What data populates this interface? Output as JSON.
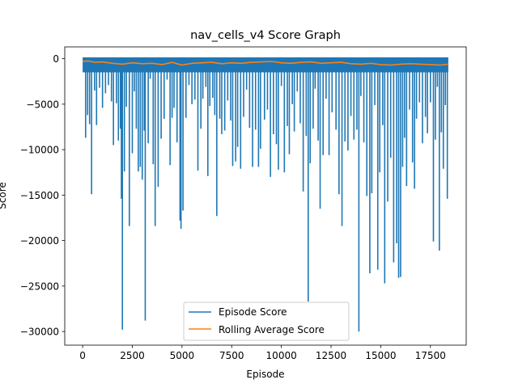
{
  "chart_data": {
    "type": "line",
    "title": "nav_cells_v4 Score Graph",
    "xlabel": "Episode",
    "ylabel": "Score",
    "xlim": [
      -900,
      19300
    ],
    "ylim": [
      -31500,
      1300
    ],
    "xticks": [
      0,
      2500,
      5000,
      7500,
      10000,
      12500,
      15000,
      17500
    ],
    "yticks": [
      0,
      -5000,
      -10000,
      -15000,
      -20000,
      -25000,
      -30000
    ],
    "grid": false,
    "legend_position": "lower center",
    "series": [
      {
        "name": "Episode Score",
        "color": "#1f77b4",
        "band": {
          "x_start": 0,
          "x_end": 18400,
          "upper": 150,
          "lower": -1500
        },
        "spikes": [
          [
            150,
            -8700
          ],
          [
            250,
            -6200
          ],
          [
            350,
            -7200
          ],
          [
            450,
            -14900
          ],
          [
            600,
            -3500
          ],
          [
            700,
            -7300
          ],
          [
            850,
            -3200
          ],
          [
            1000,
            -5400
          ],
          [
            1150,
            -3800
          ],
          [
            1300,
            -2900
          ],
          [
            1450,
            -4700
          ],
          [
            1550,
            -9500
          ],
          [
            1700,
            -4900
          ],
          [
            1800,
            -9000
          ],
          [
            1900,
            -7700
          ],
          [
            1950,
            -15400
          ],
          [
            2000,
            -29800
          ],
          [
            2100,
            -12400
          ],
          [
            2200,
            -5300
          ],
          [
            2350,
            -18400
          ],
          [
            2500,
            -10400
          ],
          [
            2600,
            -3600
          ],
          [
            2700,
            -7700
          ],
          [
            2800,
            -12400
          ],
          [
            2900,
            -11900
          ],
          [
            3000,
            -13300
          ],
          [
            3100,
            -7900
          ],
          [
            3150,
            -28800
          ],
          [
            3300,
            -9300
          ],
          [
            3400,
            -2200
          ],
          [
            3550,
            -11600
          ],
          [
            3650,
            -18400
          ],
          [
            3800,
            -14100
          ],
          [
            3950,
            -8800
          ],
          [
            4100,
            -6600
          ],
          [
            4250,
            -2300
          ],
          [
            4400,
            -11700
          ],
          [
            4500,
            -6500
          ],
          [
            4600,
            -5400
          ],
          [
            4750,
            -9200
          ],
          [
            4900,
            -17800
          ],
          [
            4950,
            -18700
          ],
          [
            5050,
            -16700
          ],
          [
            5200,
            -6500
          ],
          [
            5350,
            -2900
          ],
          [
            5500,
            -5000
          ],
          [
            5650,
            -4500
          ],
          [
            5800,
            -12300
          ],
          [
            5950,
            -7700
          ],
          [
            6050,
            -4400
          ],
          [
            6200,
            -3100
          ],
          [
            6300,
            -12900
          ],
          [
            6400,
            -5200
          ],
          [
            6550,
            -4300
          ],
          [
            6650,
            -6200
          ],
          [
            6750,
            -17300
          ],
          [
            6900,
            -6600
          ],
          [
            7000,
            -8300
          ],
          [
            7150,
            -7900
          ],
          [
            7300,
            -4600
          ],
          [
            7450,
            -6800
          ],
          [
            7550,
            -11800
          ],
          [
            7700,
            -11300
          ],
          [
            7800,
            -9700
          ],
          [
            7950,
            -12100
          ],
          [
            8100,
            -6400
          ],
          [
            8250,
            -3400
          ],
          [
            8400,
            -7600
          ],
          [
            8550,
            -11900
          ],
          [
            8700,
            -7800
          ],
          [
            8850,
            -11900
          ],
          [
            8950,
            -9900
          ],
          [
            9150,
            -6700
          ],
          [
            9300,
            -5600
          ],
          [
            9450,
            -13000
          ],
          [
            9600,
            -8300
          ],
          [
            9750,
            -9400
          ],
          [
            9850,
            -12200
          ],
          [
            10000,
            -3000
          ],
          [
            10150,
            -12500
          ],
          [
            10300,
            -7400
          ],
          [
            10400,
            -10500
          ],
          [
            10550,
            -5000
          ],
          [
            10650,
            -8000
          ],
          [
            10800,
            -3600
          ],
          [
            10950,
            -7100
          ],
          [
            11100,
            -14600
          ],
          [
            11250,
            -8500
          ],
          [
            11350,
            -26700
          ],
          [
            11450,
            -11500
          ],
          [
            11600,
            -7700
          ],
          [
            11700,
            -3300
          ],
          [
            11850,
            -9000
          ],
          [
            11950,
            -16500
          ],
          [
            12100,
            -10600
          ],
          [
            12250,
            -4400
          ],
          [
            12400,
            -10600
          ],
          [
            12550,
            -5900
          ],
          [
            12750,
            -7800
          ],
          [
            12900,
            -14900
          ],
          [
            13050,
            -18400
          ],
          [
            13200,
            -9100
          ],
          [
            13350,
            -10100
          ],
          [
            13500,
            -6300
          ],
          [
            13650,
            -8900
          ],
          [
            13800,
            -7800
          ],
          [
            13900,
            -30000
          ],
          [
            14000,
            -4100
          ],
          [
            14150,
            -9200
          ],
          [
            14300,
            -15100
          ],
          [
            14450,
            -23600
          ],
          [
            14550,
            -14800
          ],
          [
            14700,
            -5100
          ],
          [
            14850,
            -23200
          ],
          [
            14950,
            -12500
          ],
          [
            15100,
            -7300
          ],
          [
            15200,
            -24700
          ],
          [
            15350,
            -15700
          ],
          [
            15500,
            -10900
          ],
          [
            15650,
            -22400
          ],
          [
            15800,
            -20300
          ],
          [
            15900,
            -24100
          ],
          [
            16000,
            -24000
          ],
          [
            16100,
            -11900
          ],
          [
            16200,
            -8700
          ],
          [
            16300,
            -14000
          ],
          [
            16450,
            -5600
          ],
          [
            16600,
            -11400
          ],
          [
            16700,
            -14300
          ],
          [
            16800,
            -6600
          ],
          [
            16950,
            -4800
          ],
          [
            17100,
            -9300
          ],
          [
            17250,
            -6400
          ],
          [
            17350,
            -8200
          ],
          [
            17500,
            -4800
          ],
          [
            17650,
            -20100
          ],
          [
            17750,
            -8900
          ],
          [
            17850,
            -3100
          ],
          [
            17950,
            -21100
          ],
          [
            18050,
            -8100
          ],
          [
            18150,
            -12100
          ],
          [
            18250,
            -5100
          ],
          [
            18350,
            -15400
          ]
        ]
      },
      {
        "name": "Rolling Average Score",
        "color": "#ff7f0e",
        "x": [
          0,
          300,
          600,
          1000,
          1500,
          2000,
          2500,
          3000,
          3500,
          4000,
          4500,
          5000,
          5500,
          6000,
          6500,
          7000,
          7500,
          8000,
          8500,
          9000,
          9500,
          10000,
          10500,
          11000,
          11500,
          12000,
          12500,
          13000,
          13500,
          14000,
          14500,
          15000,
          15500,
          16000,
          16500,
          17000,
          17500,
          18000,
          18400
        ],
        "values": [
          -300,
          -250,
          -400,
          -350,
          -500,
          -600,
          -450,
          -550,
          -500,
          -650,
          -400,
          -700,
          -500,
          -450,
          -400,
          -550,
          -450,
          -500,
          -400,
          -350,
          -300,
          -450,
          -500,
          -400,
          -350,
          -500,
          -450,
          -400,
          -550,
          -600,
          -500,
          -650,
          -700,
          -600,
          -550,
          -600,
          -650,
          -700,
          -600
        ]
      }
    ]
  }
}
